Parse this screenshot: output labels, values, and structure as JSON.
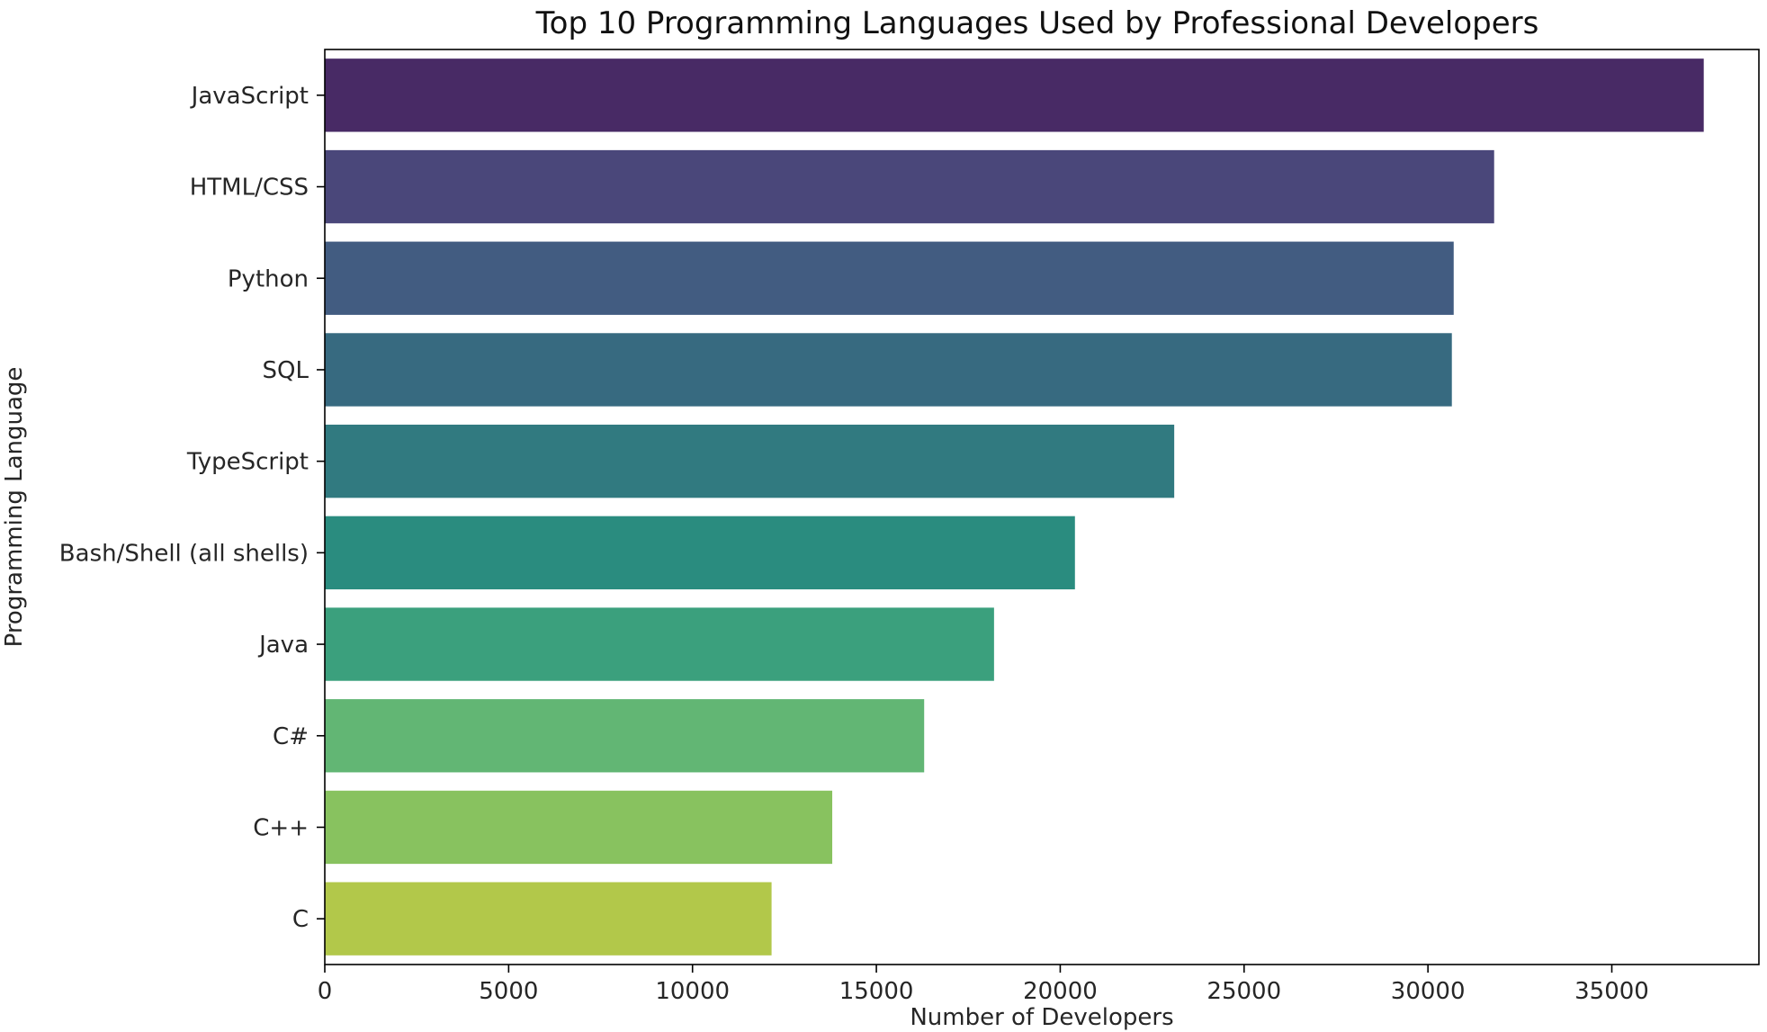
{
  "chart_data": {
    "type": "bar",
    "orientation": "horizontal",
    "title": "Top 10 Programming Languages Used by Professional Developers",
    "xlabel": "Number of Developers",
    "ylabel": "Programming Language",
    "categories": [
      "JavaScript",
      "HTML/CSS",
      "Python",
      "SQL",
      "TypeScript",
      "Bash/Shell (all shells)",
      "Java",
      "C#",
      "C++",
      "C"
    ],
    "values": [
      37500,
      31800,
      30700,
      30650,
      23100,
      20400,
      18200,
      16300,
      13800,
      12150
    ],
    "colors": [
      "#482a65",
      "#4a477a",
      "#425c81",
      "#376a80",
      "#317a80",
      "#2a8c7f",
      "#3ba07d",
      "#62b674",
      "#88c25f",
      "#b2c84a"
    ],
    "xlim": [
      0,
      39000
    ],
    "xticks": [
      0,
      5000,
      10000,
      15000,
      20000,
      25000,
      30000,
      35000
    ],
    "grid": false,
    "legend": "none"
  }
}
